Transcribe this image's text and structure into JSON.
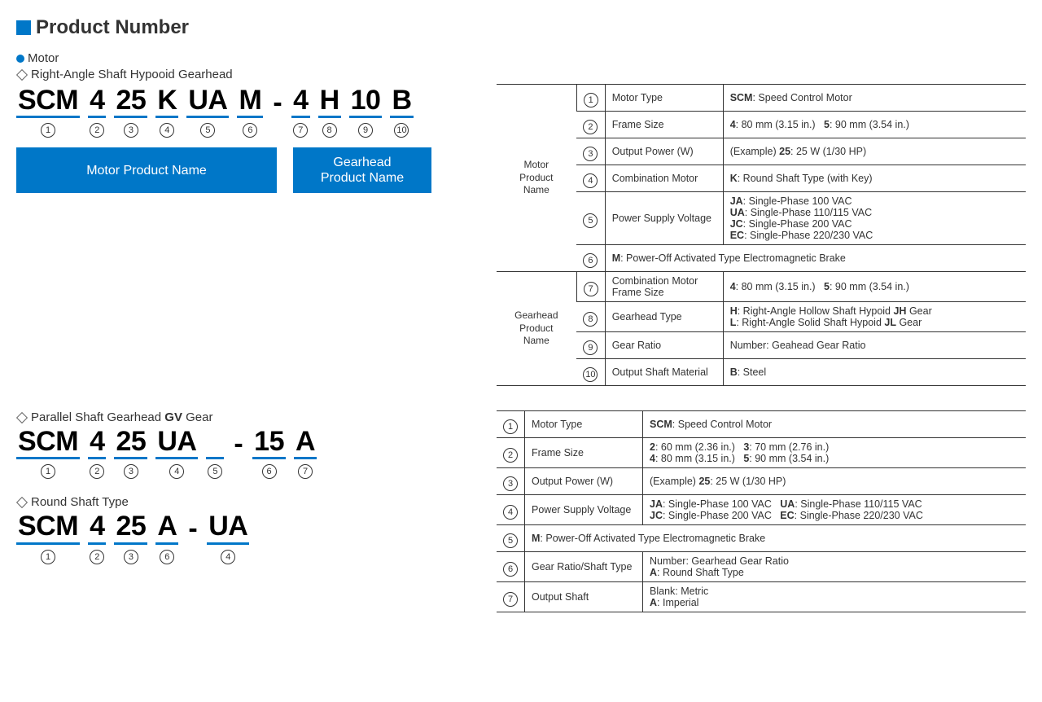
{
  "title": "Product Number",
  "colors": {
    "brand": "#0077c8",
    "text": "#333333",
    "border": "#333333"
  },
  "motor_header": "Motor",
  "subheaders": {
    "rightangle": "Right-Angle Shaft Hypooid Gearhead",
    "parallel": "Parallel Shaft Gearhead",
    "parallel_bold": "GV",
    "parallel_suffix": " Gear",
    "round": "Round Shaft Type"
  },
  "labels": {
    "motor_name": "Motor Product Name",
    "gearhead_name": "Gearhead Product Name",
    "gearhead_name_l1": "Gearhead",
    "gearhead_name_l2": "Product Name"
  },
  "code1": [
    "SCM",
    "4",
    "25",
    "K",
    "UA",
    "M",
    "-",
    "4",
    "H",
    "10",
    "B"
  ],
  "code1_nums": [
    "①",
    "②",
    "③",
    "④",
    "⑤",
    "⑥",
    "",
    "⑦",
    "⑧",
    "⑨",
    "⑩"
  ],
  "code2": [
    "SCM",
    "4",
    "25",
    "UA",
    " ",
    "-",
    "15",
    "A"
  ],
  "code2_nums": [
    "①",
    "②",
    "③",
    "④",
    "⑤",
    "",
    "⑥",
    "⑦"
  ],
  "code3": [
    "SCM",
    "4",
    "25",
    "A",
    "-",
    "UA"
  ],
  "code3_nums": [
    "①",
    "②",
    "③",
    "⑥",
    "",
    "④"
  ],
  "table1": {
    "group1": "Motor\nProduct\nName",
    "group2": "Gearhead\nProduct\nName",
    "rows": [
      {
        "n": "①",
        "label": "Motor Type",
        "desc": "<b>SCM</b>: Speed Control Motor"
      },
      {
        "n": "②",
        "label": "Frame Size",
        "desc": "<b>4</b>: 80 mm (3.15 in.)&nbsp;&nbsp;&nbsp;<b>5</b>: 90 mm (3.54 in.)"
      },
      {
        "n": "③",
        "label": "Output Power (W)",
        "desc": "(Example) <b>25</b>: 25 W (1/30 HP)"
      },
      {
        "n": "④",
        "label": "Combination Motor",
        "desc": "<b>K</b>: Round Shaft Type (with Key)"
      },
      {
        "n": "⑤",
        "label": "Power Supply Voltage",
        "desc": "<b>JA</b>: Single-Phase 100 VAC<br><b>UA</b>: Single-Phase 110/115 VAC<br><b>JC</b>: Single-Phase 200 VAC<br><b>EC</b>: Single-Phase 220/230 VAC"
      },
      {
        "n": "⑥",
        "label_span": "<b>M</b>: Power-Off Activated Type Electromagnetic Brake"
      },
      {
        "n": "⑦",
        "label": "Combination Motor Frame Size",
        "desc": "<b>4</b>: 80 mm (3.15 in.)&nbsp;&nbsp;&nbsp;<b>5</b>: 90 mm (3.54 in.)"
      },
      {
        "n": "⑧",
        "label": "Gearhead Type",
        "desc": "<b>H</b>: Right-Angle Hollow Shaft Hypoid <b>JH</b> Gear<br><b>L</b>: Right-Angle Solid Shaft Hypoid <b>JL</b> Gear"
      },
      {
        "n": "⑨",
        "label": "Gear Ratio",
        "desc": "Number: Geahead Gear Ratio"
      },
      {
        "n": "⑩",
        "label": "Output Shaft Material",
        "desc": "<b>B</b>: Steel"
      }
    ]
  },
  "table2": {
    "rows": [
      {
        "n": "①",
        "label": "Motor Type",
        "desc": "<b>SCM</b>: Speed Control Motor"
      },
      {
        "n": "②",
        "label": "Frame Size",
        "desc": "<b>2</b>: 60 mm (2.36 in.)&nbsp;&nbsp;&nbsp;<b>3</b>: 70 mm (2.76 in.)<br><b>4</b>: 80 mm (3.15 in.)&nbsp;&nbsp;&nbsp;<b>5</b>: 90 mm (3.54 in.)"
      },
      {
        "n": "③",
        "label": "Output Power (W)",
        "desc": "(Example) <b>25</b>: 25 W (1/30 HP)"
      },
      {
        "n": "④",
        "label": "Power Supply Voltage",
        "desc": "<b>JA</b>: Single-Phase 100 VAC&nbsp;&nbsp;&nbsp;<b>UA</b>: Single-Phase 110/115 VAC<br><b>JC</b>: Single-Phase 200 VAC&nbsp;&nbsp;&nbsp;<b>EC</b>: Single-Phase 220/230 VAC"
      },
      {
        "n": "⑤",
        "label_span": "<b>M</b>: Power-Off Activated Type Electromagnetic Brake"
      },
      {
        "n": "⑥",
        "label": "Gear Ratio/Shaft Type",
        "desc": "Number: Gearhead Gear Ratio<br><b>A</b>: Round Shaft Type"
      },
      {
        "n": "⑦",
        "label": "Output Shaft",
        "desc": "Blank: Metric<br><b>A</b>: Imperial"
      }
    ]
  }
}
